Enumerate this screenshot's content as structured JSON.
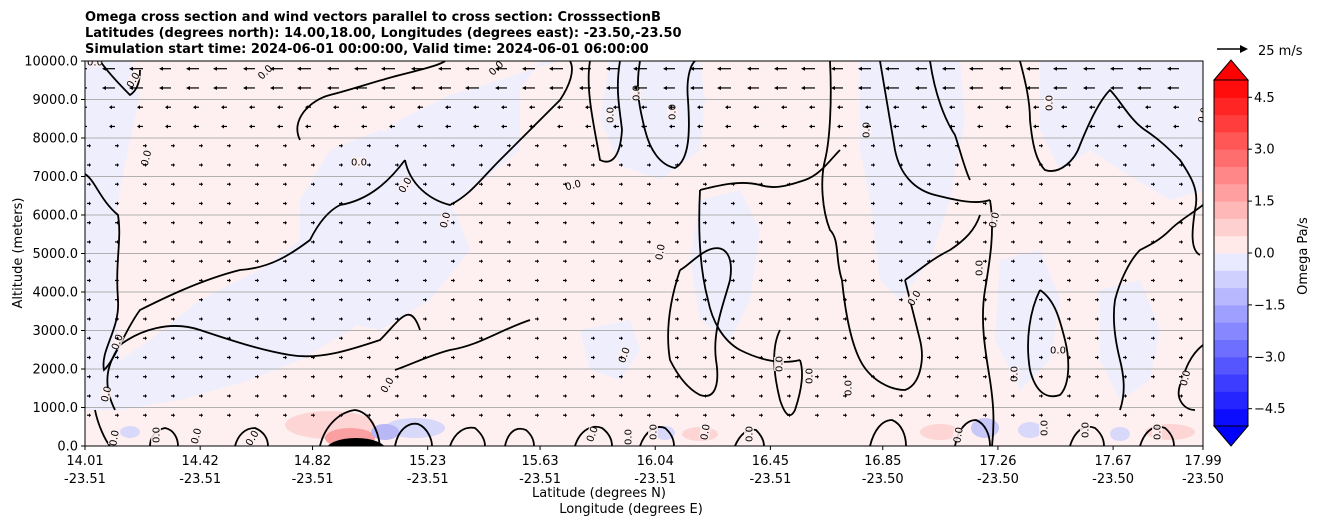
{
  "chart_data": {
    "type": "heatmap",
    "title_lines": [
      "Omega cross section and wind vectors parallel to cross section: CrosssectionB",
      "Latitudes (degrees north): 14.00,18.00, Longitudes (degrees east): -23.50,-23.50",
      "Simulation start time: 2024-06-01 00:00:00, Valid time: 2024-06-01 06:00:00"
    ],
    "xlabel_lines": [
      "Latitude (degrees N)",
      "Longitude (degrees E)"
    ],
    "ylabel": "Altitude (meters)",
    "colorbar_label": "Omega Pa/s",
    "colorbar_ticks": [
      {
        "value": 4.5,
        "label": "4.5"
      },
      {
        "value": 3.0,
        "label": "3.0"
      },
      {
        "value": 1.5,
        "label": "1.5"
      },
      {
        "value": 0.0,
        "label": "0.0"
      },
      {
        "value": -1.5,
        "label": "−1.5"
      },
      {
        "value": -3.0,
        "label": "−3.0"
      },
      {
        "value": -4.5,
        "label": "−4.5"
      }
    ],
    "colorbar_range": [
      -5.0,
      5.0
    ],
    "colorbar_levels": 20,
    "quiver_key": "25 m/s",
    "contour_label": "0.0",
    "x_ticks": [
      {
        "lat": "14.01",
        "lon": "-23.51"
      },
      {
        "lat": "14.42",
        "lon": "-23.51"
      },
      {
        "lat": "14.82",
        "lon": "-23.51"
      },
      {
        "lat": "15.23",
        "lon": "-23.51"
      },
      {
        "lat": "15.63",
        "lon": "-23.51"
      },
      {
        "lat": "16.04",
        "lon": "-23.51"
      },
      {
        "lat": "16.45",
        "lon": "-23.51"
      },
      {
        "lat": "16.85",
        "lon": "-23.50"
      },
      {
        "lat": "17.26",
        "lon": "-23.50"
      },
      {
        "lat": "17.67",
        "lon": "-23.50"
      },
      {
        "lat": "17.99",
        "lon": "-23.50"
      }
    ],
    "x_range": [
      14.01,
      17.99
    ],
    "y_ticks": [
      "0.0",
      "1000.0",
      "2000.0",
      "3000.0",
      "4000.0",
      "5000.0",
      "6000.0",
      "7000.0",
      "8000.0",
      "9000.0",
      "10000.0"
    ],
    "y_range": [
      0,
      10000
    ],
    "grid": "horizontal",
    "colors": {
      "positive": "#ff0000",
      "negative": "#0000ff",
      "contour": "#000000",
      "grid": "#b0b0b0"
    }
  }
}
